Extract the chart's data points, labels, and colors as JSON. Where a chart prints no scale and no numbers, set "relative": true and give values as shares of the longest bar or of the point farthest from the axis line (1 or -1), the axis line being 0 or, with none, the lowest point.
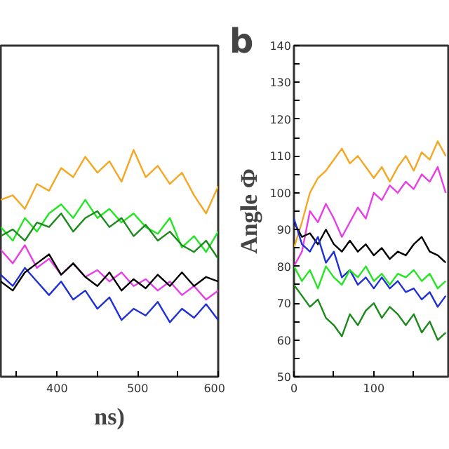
{
  "chart_data": [
    {
      "type": "line",
      "relative": true,
      "xlabel": "ns)",
      "xlim": [
        330,
        600
      ],
      "xticks": [
        {
          "value": 350,
          "label": null
        },
        400,
        {
          "value": 450,
          "label": null
        },
        500,
        {
          "value": 550,
          "label": null
        },
        600
      ],
      "x": [
        330,
        345,
        360,
        375,
        390,
        405,
        420,
        435,
        450,
        465,
        480,
        495,
        510,
        525,
        540,
        555,
        570,
        585,
        600
      ],
      "series": [
        {
          "color": "#f5a623",
          "values": [
            0.78,
            0.8,
            0.74,
            0.85,
            0.82,
            0.92,
            0.88,
            0.97,
            0.9,
            0.95,
            0.86,
            1.0,
            0.88,
            0.93,
            0.85,
            0.9,
            0.8,
            0.72,
            0.84
          ]
        },
        {
          "color": "#22e622",
          "values": [
            0.66,
            0.6,
            0.7,
            0.64,
            0.72,
            0.76,
            0.7,
            0.78,
            0.7,
            0.74,
            0.68,
            0.72,
            0.66,
            0.63,
            0.7,
            0.57,
            0.62,
            0.55,
            0.64
          ]
        },
        {
          "color": "#1a8a1a",
          "values": [
            0.62,
            0.65,
            0.6,
            0.68,
            0.66,
            0.72,
            0.64,
            0.7,
            0.73,
            0.66,
            0.7,
            0.62,
            0.67,
            0.6,
            0.64,
            0.58,
            0.55,
            0.6,
            0.52
          ]
        },
        {
          "color": "#e83ee8",
          "values": [
            0.56,
            0.5,
            0.58,
            0.48,
            0.52,
            0.45,
            0.5,
            0.44,
            0.47,
            0.42,
            0.46,
            0.4,
            0.43,
            0.38,
            0.42,
            0.36,
            0.4,
            0.34,
            0.38
          ]
        },
        {
          "color": "#1f2fd6",
          "values": [
            0.45,
            0.4,
            0.48,
            0.42,
            0.36,
            0.42,
            0.34,
            0.38,
            0.3,
            0.35,
            0.25,
            0.3,
            0.27,
            0.33,
            0.24,
            0.3,
            0.26,
            0.32,
            0.25
          ]
        },
        {
          "color": "#000000",
          "values": [
            0.42,
            0.38,
            0.46,
            0.5,
            0.54,
            0.45,
            0.5,
            0.44,
            0.4,
            0.46,
            0.38,
            0.43,
            0.39,
            0.45,
            0.4,
            0.46,
            0.4,
            0.44,
            0.42
          ]
        }
      ]
    },
    {
      "type": "line",
      "ylabel": "Angle Φ",
      "annotations": [
        "b"
      ],
      "xlim": [
        0,
        195
      ],
      "ylim": [
        50,
        140
      ],
      "xticks": [
        0,
        {
          "value": 50,
          "label": null
        },
        100,
        {
          "value": 150,
          "label": null
        }
      ],
      "yticks": [
        50,
        {
          "value": 55,
          "label": null
        },
        60,
        {
          "value": 65,
          "label": null
        },
        70,
        {
          "value": 75,
          "label": null
        },
        80,
        {
          "value": 85,
          "label": null
        },
        90,
        {
          "value": 95,
          "label": null
        },
        100,
        {
          "value": 105,
          "label": null
        },
        110,
        {
          "value": 115,
          "label": null
        },
        120,
        {
          "value": 125,
          "label": null
        },
        130,
        {
          "value": 135,
          "label": null
        },
        140
      ],
      "x": [
        0,
        10,
        20,
        30,
        40,
        50,
        60,
        70,
        80,
        90,
        100,
        110,
        120,
        130,
        140,
        150,
        160,
        170,
        180,
        190
      ],
      "series": [
        {
          "color": "#f5a623",
          "values": [
            85,
            92,
            100,
            104,
            106,
            109,
            112,
            108,
            110,
            107,
            104,
            107,
            103,
            107,
            110,
            106,
            111,
            109,
            114,
            110
          ]
        },
        {
          "color": "#e83ee8",
          "values": [
            80,
            84,
            95,
            92,
            97,
            93,
            88,
            92,
            96,
            93,
            100,
            98,
            102,
            100,
            103,
            101,
            105,
            103,
            107,
            100
          ]
        },
        {
          "color": "#000000",
          "values": [
            92,
            88,
            89,
            86,
            90,
            86,
            84,
            87,
            84,
            86,
            83,
            85,
            82,
            84,
            83,
            86,
            88,
            84,
            83,
            81
          ]
        },
        {
          "color": "#1f2fd6",
          "values": [
            93,
            86,
            84,
            88,
            81,
            84,
            77,
            79,
            75,
            77,
            74,
            77,
            74,
            76,
            73,
            74,
            71,
            73,
            69,
            72
          ]
        },
        {
          "color": "#22e622",
          "values": [
            80,
            76,
            79,
            74,
            80,
            77,
            75,
            79,
            77,
            80,
            76,
            78,
            75,
            78,
            77,
            79,
            76,
            78,
            74,
            76
          ]
        },
        {
          "color": "#1a8a1a",
          "values": [
            75,
            72,
            69,
            71,
            66,
            64,
            61,
            67,
            64,
            68,
            70,
            66,
            69,
            67,
            64,
            67,
            62,
            65,
            60,
            62
          ]
        }
      ]
    }
  ]
}
